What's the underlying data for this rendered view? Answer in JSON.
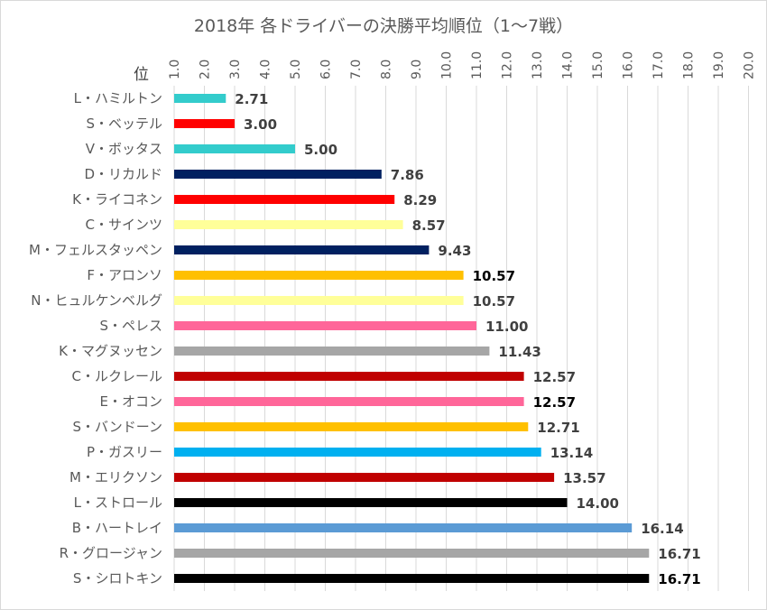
{
  "chart_data": {
    "type": "bar",
    "orientation": "horizontal",
    "title": "2018年 各ドライバーの決勝平均順位（1〜7戦）",
    "xlabel": "位",
    "ylabel": "",
    "xlim": [
      1.0,
      20.0
    ],
    "x_ticks": [
      "1.0",
      "2.0",
      "3.0",
      "4.0",
      "5.0",
      "6.0",
      "7.0",
      "8.0",
      "9.0",
      "10.0",
      "11.0",
      "12.0",
      "13.0",
      "14.0",
      "15.0",
      "16.0",
      "17.0",
      "18.0",
      "19.0",
      "20.0"
    ],
    "grid": "vertical",
    "legend": "none",
    "categories": [
      "L・ハミルトン",
      "S・ベッテル",
      "V・ボッタス",
      "D・リカルド",
      "K・ライコネン",
      "C・サインツ",
      "M・フェルスタッペン",
      "F・アロンソ",
      "N・ヒュルケンベルグ",
      "S・ペレス",
      "K・マグヌッセン",
      "C・ルクレール",
      "E・オコン",
      "S・バンドーン",
      "P・ガスリー",
      "M・エリクソン",
      "L・ストロール",
      "B・ハートレイ",
      "R・グロージャン",
      "S・シロトキン"
    ],
    "values": [
      2.71,
      3.0,
      5.0,
      7.86,
      8.29,
      8.57,
      9.43,
      10.57,
      10.57,
      11.0,
      11.43,
      12.57,
      12.57,
      12.71,
      13.14,
      13.57,
      14.0,
      16.14,
      16.71,
      16.71
    ],
    "data_labels": [
      "2.71",
      "3.00",
      "5.00",
      "7.86",
      "8.29",
      "8.57",
      "9.43",
      "10.57",
      "10.57",
      "11.00",
      "11.43",
      "12.57",
      "12.57",
      "12.71",
      "13.14",
      "13.57",
      "14.00",
      "16.14",
      "16.71",
      "16.71"
    ],
    "bar_colors": [
      "#33cccc",
      "#ff0000",
      "#33cccc",
      "#002060",
      "#ff0000",
      "#ffff99",
      "#002060",
      "#ffc000",
      "#ffff99",
      "#ff6699",
      "#a6a6a6",
      "#c00000",
      "#ff6699",
      "#ffc000",
      "#00b0f0",
      "#c00000",
      "#000000",
      "#5b9bd5",
      "#a6a6a6",
      "#000000"
    ],
    "label_colors": [
      "#404040",
      "#404040",
      "#404040",
      "#404040",
      "#404040",
      "#404040",
      "#404040",
      "#000000",
      "#404040",
      "#404040",
      "#404040",
      "#404040",
      "#000000",
      "#404040",
      "#404040",
      "#404040",
      "#404040",
      "#404040",
      "#404040",
      "#000000"
    ]
  }
}
